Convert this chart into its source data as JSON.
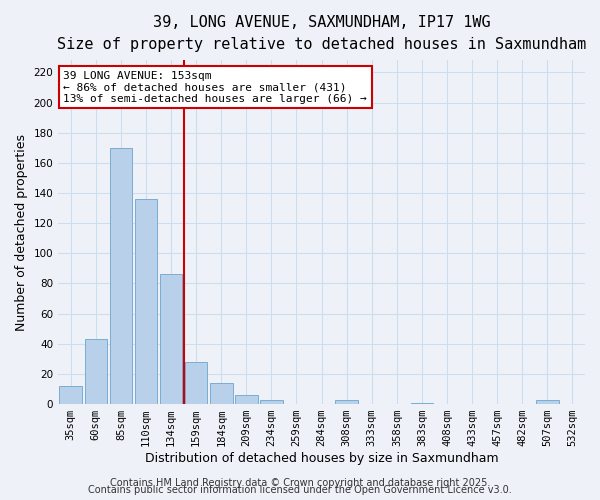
{
  "title": "39, LONG AVENUE, SAXMUNDHAM, IP17 1WG",
  "subtitle": "Size of property relative to detached houses in Saxmundham",
  "xlabel": "Distribution of detached houses by size in Saxmundham",
  "ylabel": "Number of detached properties",
  "bar_labels": [
    "35sqm",
    "60sqm",
    "85sqm",
    "110sqm",
    "134sqm",
    "159sqm",
    "184sqm",
    "209sqm",
    "234sqm",
    "259sqm",
    "284sqm",
    "308sqm",
    "333sqm",
    "358sqm",
    "383sqm",
    "408sqm",
    "433sqm",
    "457sqm",
    "482sqm",
    "507sqm",
    "532sqm"
  ],
  "bar_values": [
    12,
    43,
    170,
    136,
    86,
    28,
    14,
    6,
    3,
    0,
    0,
    3,
    0,
    0,
    1,
    0,
    0,
    0,
    0,
    3,
    0
  ],
  "bar_color": "#b8d0ea",
  "bar_edge_color": "#7aadd4",
  "vline_pos": 4.5,
  "vline_color": "#cc0000",
  "ylim": [
    0,
    228
  ],
  "yticks": [
    0,
    20,
    40,
    60,
    80,
    100,
    120,
    140,
    160,
    180,
    200,
    220
  ],
  "annotation_title": "39 LONG AVENUE: 153sqm",
  "annotation_line1": "← 86% of detached houses are smaller (431)",
  "annotation_line2": "13% of semi-detached houses are larger (66) →",
  "annotation_box_color": "#ffffff",
  "annotation_box_edge": "#cc0000",
  "grid_color": "#ccdded",
  "background_color": "#eef2f8",
  "footer1": "Contains HM Land Registry data © Crown copyright and database right 2025.",
  "footer2": "Contains public sector information licensed under the Open Government Licence v3.0.",
  "title_fontsize": 11,
  "subtitle_fontsize": 9.5,
  "xlabel_fontsize": 9,
  "ylabel_fontsize": 9,
  "ann_fontsize": 8,
  "tick_fontsize": 7.5,
  "footer_fontsize": 7
}
